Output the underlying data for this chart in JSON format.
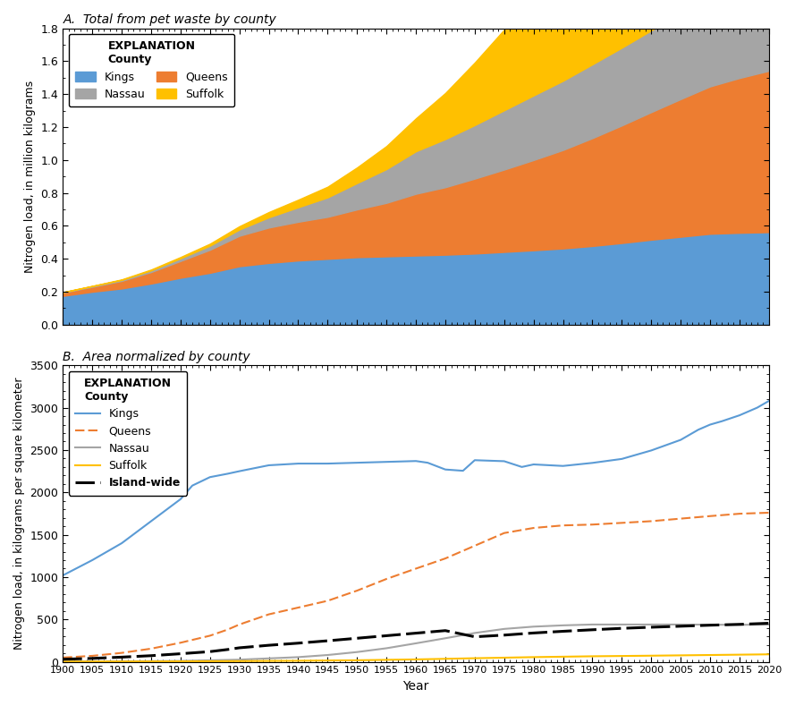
{
  "title_A": "A.  Total from pet waste by county",
  "title_B": "B.  Area normalized by county",
  "xlabel": "Year",
  "ylabel_A": "Nitrogen load, in million kilograms",
  "ylabel_B": "Nitrogen load, in kilograms per square kilometer",
  "kings_key_years_A": [
    1900,
    1905,
    1910,
    1915,
    1920,
    1925,
    1930,
    1935,
    1940,
    1945,
    1950,
    1955,
    1960,
    1965,
    1970,
    1975,
    1980,
    1985,
    1990,
    1995,
    2000,
    2005,
    2010,
    2015,
    2020
  ],
  "kings_key_vals_A": [
    0.175,
    0.2,
    0.22,
    0.25,
    0.285,
    0.315,
    0.355,
    0.375,
    0.39,
    0.4,
    0.41,
    0.415,
    0.42,
    0.425,
    0.432,
    0.442,
    0.452,
    0.463,
    0.478,
    0.496,
    0.516,
    0.534,
    0.552,
    0.558,
    0.562
  ],
  "queens_key_years_A": [
    1900,
    1905,
    1910,
    1915,
    1920,
    1925,
    1930,
    1935,
    1940,
    1945,
    1950,
    1955,
    1960,
    1965,
    1970,
    1975,
    1980,
    1985,
    1990,
    1995,
    2000,
    2005,
    2010,
    2015,
    2020
  ],
  "queens_key_vals_A": [
    0.02,
    0.03,
    0.046,
    0.07,
    0.102,
    0.14,
    0.185,
    0.215,
    0.235,
    0.255,
    0.29,
    0.325,
    0.375,
    0.41,
    0.455,
    0.5,
    0.548,
    0.598,
    0.655,
    0.714,
    0.775,
    0.836,
    0.895,
    0.94,
    0.98
  ],
  "nassau_key_years_A": [
    1900,
    1905,
    1910,
    1915,
    1920,
    1925,
    1930,
    1935,
    1940,
    1945,
    1950,
    1955,
    1960,
    1965,
    1970,
    1975,
    1980,
    1985,
    1990,
    1995,
    2000,
    2005,
    2010,
    2015,
    2020
  ],
  "nassau_key_vals_A": [
    0.002,
    0.004,
    0.006,
    0.01,
    0.016,
    0.025,
    0.038,
    0.062,
    0.088,
    0.118,
    0.16,
    0.205,
    0.258,
    0.292,
    0.325,
    0.36,
    0.392,
    0.42,
    0.448,
    0.472,
    0.496,
    0.52,
    0.548,
    0.576,
    0.605
  ],
  "suffolk_key_years_A": [
    1900,
    1905,
    1910,
    1915,
    1920,
    1925,
    1930,
    1935,
    1940,
    1945,
    1950,
    1955,
    1960,
    1965,
    1970,
    1975,
    1980,
    1985,
    1990,
    1995,
    2000,
    2005,
    2010,
    2015,
    2020
  ],
  "suffolk_key_vals_A": [
    0.001,
    0.002,
    0.003,
    0.005,
    0.008,
    0.012,
    0.02,
    0.032,
    0.046,
    0.065,
    0.095,
    0.14,
    0.2,
    0.28,
    0.38,
    0.49,
    0.56,
    0.59,
    0.61,
    0.62,
    0.625,
    0.625,
    0.622,
    0.618,
    0.61
  ],
  "kings_key_years_B": [
    1900,
    1905,
    1910,
    1915,
    1920,
    1922,
    1925,
    1928,
    1930,
    1935,
    1940,
    1945,
    1950,
    1955,
    1960,
    1962,
    1965,
    1968,
    1970,
    1975,
    1978,
    1980,
    1985,
    1990,
    1995,
    2000,
    2005,
    2008,
    2010,
    2012,
    2015,
    2018,
    2020
  ],
  "kings_key_vals_B": [
    1020,
    1200,
    1400,
    1660,
    1920,
    2080,
    2180,
    2220,
    2250,
    2320,
    2340,
    2340,
    2350,
    2360,
    2370,
    2350,
    2270,
    2255,
    2380,
    2368,
    2300,
    2330,
    2312,
    2348,
    2395,
    2495,
    2620,
    2740,
    2800,
    2840,
    2910,
    3000,
    3080
  ],
  "queens_key_years_B": [
    1900,
    1905,
    1910,
    1915,
    1920,
    1925,
    1928,
    1930,
    1935,
    1940,
    1945,
    1950,
    1955,
    1960,
    1965,
    1970,
    1975,
    1980,
    1985,
    1990,
    1995,
    2000,
    2005,
    2010,
    2015,
    2020
  ],
  "queens_key_vals_B": [
    50,
    70,
    105,
    155,
    225,
    308,
    380,
    440,
    560,
    640,
    720,
    840,
    978,
    1100,
    1220,
    1370,
    1520,
    1580,
    1610,
    1620,
    1640,
    1660,
    1690,
    1720,
    1748,
    1760
  ],
  "nassau_key_years_B": [
    1900,
    1910,
    1920,
    1930,
    1940,
    1945,
    1950,
    1955,
    1960,
    1965,
    1970,
    1975,
    1980,
    1985,
    1990,
    1995,
    2000,
    2005,
    2010,
    2015,
    2020
  ],
  "nassau_key_vals_B": [
    3,
    5,
    10,
    25,
    55,
    80,
    115,
    160,
    218,
    278,
    340,
    388,
    415,
    430,
    440,
    440,
    440,
    440,
    438,
    436,
    440
  ],
  "suffolk_key_years_B": [
    1900,
    1910,
    1920,
    1930,
    1940,
    1950,
    1960,
    1970,
    1980,
    1990,
    2000,
    2010,
    2020
  ],
  "suffolk_key_vals_B": [
    2,
    3,
    5,
    8,
    12,
    18,
    28,
    42,
    55,
    65,
    72,
    80,
    88
  ],
  "island_key_years_B": [
    1900,
    1905,
    1910,
    1915,
    1920,
    1925,
    1928,
    1930,
    1935,
    1940,
    1945,
    1950,
    1955,
    1960,
    1965,
    1970,
    1975,
    1980,
    1985,
    1990,
    1995,
    2000,
    2005,
    2010,
    2015,
    2020
  ],
  "island_key_vals_B": [
    30,
    40,
    55,
    72,
    95,
    120,
    145,
    165,
    195,
    220,
    248,
    278,
    308,
    338,
    368,
    295,
    315,
    340,
    360,
    378,
    395,
    408,
    420,
    432,
    442,
    455
  ],
  "color_kings": "#5b9bd5",
  "color_queens": "#ed7d31",
  "color_nassau": "#a5a5a5",
  "color_suffolk": "#ffc000",
  "color_island": "#000000",
  "ylim_A": [
    0,
    1.8
  ],
  "yticks_A": [
    0,
    0.2,
    0.4,
    0.6,
    0.8,
    1.0,
    1.2,
    1.4,
    1.6,
    1.8
  ],
  "ylim_B": [
    0,
    3500
  ],
  "yticks_B": [
    0,
    500,
    1000,
    1500,
    2000,
    2500,
    3000,
    3500
  ],
  "xlim": [
    1900,
    2020
  ],
  "xticks": [
    1900,
    1905,
    1910,
    1915,
    1920,
    1925,
    1930,
    1935,
    1940,
    1945,
    1950,
    1955,
    1960,
    1965,
    1970,
    1975,
    1980,
    1985,
    1990,
    1995,
    2000,
    2005,
    2010,
    2015,
    2020
  ]
}
